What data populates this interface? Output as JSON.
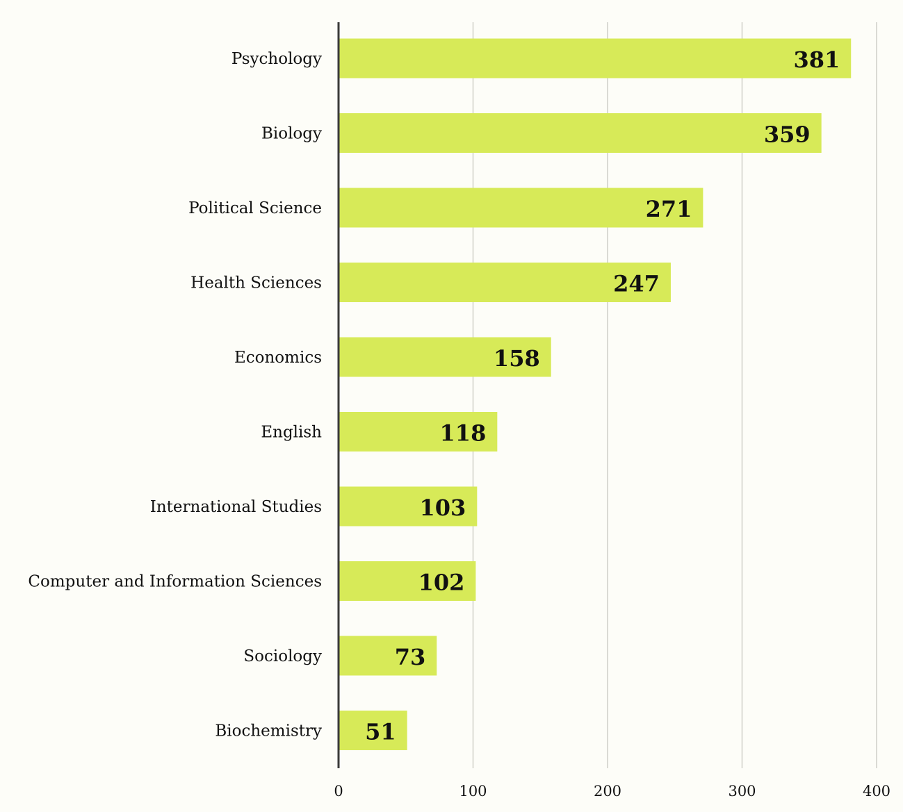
{
  "chart_data": {
    "type": "bar",
    "orientation": "horizontal",
    "categories": [
      "Psychology",
      "Biology",
      "Political Science",
      "Health Sciences",
      "Economics",
      "English",
      "International Studies",
      "Computer and Information Sciences",
      "Sociology",
      "Biochemistry"
    ],
    "values": [
      381,
      359,
      271,
      247,
      158,
      118,
      103,
      102,
      73,
      51
    ],
    "title": "",
    "xlabel": "",
    "ylabel": "",
    "xlim": [
      0,
      400
    ],
    "xticks": [
      0,
      100,
      200,
      300,
      400
    ],
    "grid": "vertical",
    "data_labels": "inside-end",
    "colors": {
      "bar": "#d7ea58",
      "grid": "#cfcfc8",
      "axis": "#3a3a3a",
      "background": "#fdfdf8"
    }
  }
}
